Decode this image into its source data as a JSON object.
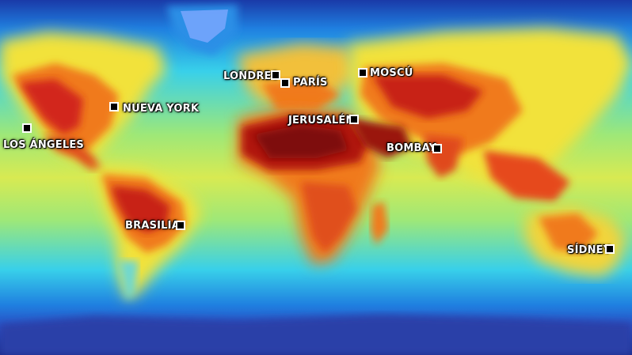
{
  "map": {
    "colors": {
      "ocean_cold": "#1a2a8a",
      "ocean_cool": "#1f7fe0",
      "ocean_mid": "#2fd6e6",
      "ocean_warm": "#7fe08a",
      "land_warm": "#f2e23a",
      "land_hot": "#f07a1e",
      "land_very_hot": "#d2281a",
      "land_extreme": "#8a1208",
      "ice": "#7ea7ff"
    }
  },
  "cities": [
    {
      "id": "los-angeles",
      "label": "LOS ÁNGELES"
    },
    {
      "id": "nueva-york",
      "label": "NUEVA YORK"
    },
    {
      "id": "londres",
      "label": "LONDRES"
    },
    {
      "id": "paris",
      "label": "PARÍS"
    },
    {
      "id": "moscu",
      "label": "MOSCÚ"
    },
    {
      "id": "jerusalen",
      "label": "JERUSALÉN"
    },
    {
      "id": "bombay",
      "label": "BOMBAY"
    },
    {
      "id": "brasilia",
      "label": "BRASILIA"
    },
    {
      "id": "sidney",
      "label": "SÍDNEY"
    }
  ]
}
